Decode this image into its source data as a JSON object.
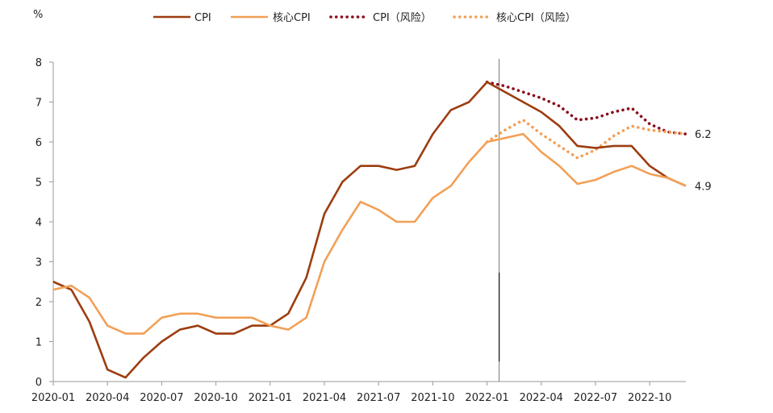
{
  "chart_data": {
    "type": "line",
    "ylabel": "%",
    "ylim": [
      0,
      8
    ],
    "yticks": [
      0,
      1,
      2,
      3,
      4,
      5,
      6,
      7,
      8
    ],
    "x_labels": [
      "2020-01",
      "2020-04",
      "2020-07",
      "2020-10",
      "2021-01",
      "2021-04",
      "2021-07",
      "2021-10",
      "2022-01",
      "2022-04",
      "2022-07",
      "2022-10"
    ],
    "x_range": [
      "2020-01",
      "2022-12"
    ],
    "grid": false,
    "legend_position": "top",
    "forecast_divider": "2022-01",
    "series": [
      {
        "name": "CPI",
        "style": "solid",
        "color": "#9c3d10",
        "points": [
          [
            "2020-01",
            2.5
          ],
          [
            "2020-02",
            2.3
          ],
          [
            "2020-03",
            1.5
          ],
          [
            "2020-04",
            0.3
          ],
          [
            "2020-05",
            0.1
          ],
          [
            "2020-06",
            0.6
          ],
          [
            "2020-07",
            1.0
          ],
          [
            "2020-08",
            1.3
          ],
          [
            "2020-09",
            1.4
          ],
          [
            "2020-10",
            1.2
          ],
          [
            "2020-11",
            1.2
          ],
          [
            "2020-12",
            1.4
          ],
          [
            "2021-01",
            1.4
          ],
          [
            "2021-02",
            1.7
          ],
          [
            "2021-03",
            2.6
          ],
          [
            "2021-04",
            4.2
          ],
          [
            "2021-05",
            5.0
          ],
          [
            "2021-06",
            5.4
          ],
          [
            "2021-07",
            5.4
          ],
          [
            "2021-08",
            5.3
          ],
          [
            "2021-09",
            5.4
          ],
          [
            "2021-10",
            6.2
          ],
          [
            "2021-11",
            6.8
          ],
          [
            "2021-12",
            7.0
          ],
          [
            "2022-01",
            7.5
          ],
          [
            "2022-02",
            7.25
          ],
          [
            "2022-03",
            7.0
          ],
          [
            "2022-04",
            6.75
          ],
          [
            "2022-05",
            6.4
          ],
          [
            "2022-06",
            5.9
          ],
          [
            "2022-07",
            5.85
          ],
          [
            "2022-08",
            5.9
          ],
          [
            "2022-09",
            5.9
          ],
          [
            "2022-10",
            5.4
          ],
          [
            "2022-11",
            5.1
          ],
          [
            "2022-12",
            4.9
          ]
        ]
      },
      {
        "name": "核心CPI",
        "style": "solid",
        "color": "#f2a057",
        "points": [
          [
            "2020-01",
            2.3
          ],
          [
            "2020-02",
            2.4
          ],
          [
            "2020-03",
            2.1
          ],
          [
            "2020-04",
            1.4
          ],
          [
            "2020-05",
            1.2
          ],
          [
            "2020-06",
            1.2
          ],
          [
            "2020-07",
            1.6
          ],
          [
            "2020-08",
            1.7
          ],
          [
            "2020-09",
            1.7
          ],
          [
            "2020-10",
            1.6
          ],
          [
            "2020-11",
            1.6
          ],
          [
            "2020-12",
            1.6
          ],
          [
            "2021-01",
            1.4
          ],
          [
            "2021-02",
            1.3
          ],
          [
            "2021-03",
            1.6
          ],
          [
            "2021-04",
            3.0
          ],
          [
            "2021-05",
            3.8
          ],
          [
            "2021-06",
            4.5
          ],
          [
            "2021-07",
            4.3
          ],
          [
            "2021-08",
            4.0
          ],
          [
            "2021-09",
            4.0
          ],
          [
            "2021-10",
            4.6
          ],
          [
            "2021-11",
            4.9
          ],
          [
            "2021-12",
            5.5
          ],
          [
            "2022-01",
            6.0
          ],
          [
            "2022-02",
            6.1
          ],
          [
            "2022-03",
            6.2
          ],
          [
            "2022-04",
            5.75
          ],
          [
            "2022-05",
            5.4
          ],
          [
            "2022-06",
            4.95
          ],
          [
            "2022-07",
            5.05
          ],
          [
            "2022-08",
            5.25
          ],
          [
            "2022-09",
            5.4
          ],
          [
            "2022-10",
            5.2
          ],
          [
            "2022-11",
            5.1
          ],
          [
            "2022-12",
            4.9
          ]
        ]
      },
      {
        "name": "CPI（风险）",
        "style": "dotted",
        "color": "#8b0c1a",
        "points": [
          [
            "2022-01",
            7.5
          ],
          [
            "2022-02",
            7.4
          ],
          [
            "2022-03",
            7.25
          ],
          [
            "2022-04",
            7.1
          ],
          [
            "2022-05",
            6.9
          ],
          [
            "2022-06",
            6.55
          ],
          [
            "2022-07",
            6.6
          ],
          [
            "2022-08",
            6.75
          ],
          [
            "2022-09",
            6.85
          ],
          [
            "2022-10",
            6.45
          ],
          [
            "2022-11",
            6.25
          ],
          [
            "2022-12",
            6.2
          ]
        ]
      },
      {
        "name": "核心CPI（风险）",
        "style": "dotted",
        "color": "#f2a057",
        "points": [
          [
            "2022-01",
            6.0
          ],
          [
            "2022-02",
            6.3
          ],
          [
            "2022-03",
            6.55
          ],
          [
            "2022-04",
            6.2
          ],
          [
            "2022-05",
            5.9
          ],
          [
            "2022-06",
            5.6
          ],
          [
            "2022-07",
            5.8
          ],
          [
            "2022-08",
            6.15
          ],
          [
            "2022-09",
            6.4
          ],
          [
            "2022-10",
            6.3
          ],
          [
            "2022-11",
            6.25
          ],
          [
            "2022-12",
            6.2
          ]
        ]
      }
    ],
    "annotations": [
      {
        "text": "6.2",
        "x": "2022-12",
        "y": 6.2
      },
      {
        "text": "4.9",
        "x": "2022-12",
        "y": 4.9
      }
    ]
  }
}
